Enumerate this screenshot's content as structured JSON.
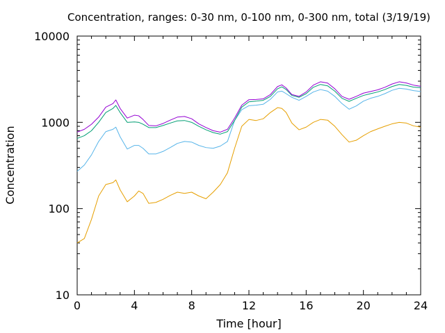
{
  "chart_data": {
    "type": "line",
    "title": "Concentration, ranges: 0-30 nm, 0-100 nm, 0-300 nm, total (3/19/19)",
    "xlabel": "Time [hour]",
    "ylabel": "Concentration",
    "xlim": [
      0,
      24
    ],
    "ylim": [
      10,
      10000
    ],
    "yscale": "log",
    "grid": false,
    "legend": "none",
    "x_ticks": [
      0,
      4,
      8,
      12,
      16,
      20,
      24
    ],
    "x_tick_labels": [
      "0",
      "4",
      "8",
      "12",
      "16",
      "20",
      "24"
    ],
    "y_ticks": [
      10,
      100,
      1000,
      10000
    ],
    "y_tick_labels": [
      "10",
      "100",
      "1000",
      "10000"
    ],
    "series": [
      {
        "color": "#e69f00",
        "x": [
          0,
          0.5,
          1,
          1.5,
          2,
          2.5,
          2.7,
          3,
          3.5,
          4,
          4.3,
          4.6,
          5,
          5.5,
          6,
          6.5,
          7,
          7.5,
          8,
          8.5,
          9,
          9.5,
          10,
          10.5,
          11,
          11.5,
          12,
          12.5,
          13,
          13.5,
          14,
          14.3,
          14.6,
          15,
          15.5,
          16,
          16.5,
          17,
          17.5,
          18,
          18.5,
          19,
          19.5,
          20,
          20.5,
          21,
          21.5,
          22,
          22.5,
          23,
          23.5,
          24
        ],
        "y": [
          40,
          45,
          75,
          140,
          190,
          200,
          215,
          165,
          120,
          140,
          160,
          150,
          115,
          118,
          128,
          142,
          155,
          150,
          155,
          140,
          130,
          155,
          190,
          260,
          500,
          900,
          1080,
          1050,
          1100,
          1300,
          1480,
          1450,
          1300,
          980,
          820,
          880,
          1000,
          1080,
          1060,
          900,
          720,
          590,
          620,
          700,
          780,
          840,
          900,
          960,
          1000,
          980,
          910,
          880
        ]
      },
      {
        "color": "#56b4e9",
        "x": [
          0,
          0.5,
          1,
          1.5,
          2,
          2.5,
          2.7,
          3,
          3.5,
          4,
          4.3,
          4.6,
          5,
          5.5,
          6,
          6.5,
          7,
          7.5,
          8,
          8.5,
          9,
          9.5,
          10,
          10.5,
          11,
          11.5,
          12,
          12.5,
          13,
          13.5,
          14,
          14.3,
          14.6,
          15,
          15.5,
          16,
          16.5,
          17,
          17.5,
          18,
          18.5,
          19,
          19.5,
          20,
          20.5,
          21,
          21.5,
          22,
          22.5,
          23,
          23.5,
          24
        ],
        "y": [
          270,
          320,
          420,
          600,
          780,
          830,
          880,
          680,
          490,
          540,
          540,
          500,
          430,
          430,
          460,
          510,
          570,
          600,
          590,
          540,
          510,
          500,
          530,
          600,
          1050,
          1400,
          1560,
          1580,
          1620,
          1850,
          2250,
          2300,
          2150,
          1950,
          1800,
          2000,
          2250,
          2400,
          2300,
          2000,
          1650,
          1420,
          1550,
          1760,
          1900,
          2000,
          2150,
          2350,
          2480,
          2430,
          2330,
          2280
        ]
      },
      {
        "color": "#009e73",
        "x": [
          0,
          0.5,
          1,
          1.5,
          2,
          2.5,
          2.7,
          3,
          3.5,
          4,
          4.3,
          4.6,
          5,
          5.5,
          6,
          6.5,
          7,
          7.5,
          8,
          8.5,
          9,
          9.5,
          10,
          10.5,
          11,
          11.5,
          12,
          12.5,
          13,
          13.5,
          14,
          14.3,
          14.6,
          15,
          15.5,
          16,
          16.5,
          17,
          17.5,
          18,
          18.5,
          19,
          19.5,
          20,
          20.5,
          21,
          21.5,
          22,
          22.5,
          23,
          23.5,
          24
        ],
        "y": [
          650,
          700,
          800,
          1000,
          1300,
          1450,
          1570,
          1300,
          1000,
          1010,
          1000,
          950,
          870,
          870,
          920,
          980,
          1040,
          1050,
          1000,
          900,
          820,
          760,
          730,
          780,
          1050,
          1500,
          1730,
          1760,
          1800,
          2000,
          2450,
          2580,
          2400,
          2050,
          1950,
          2150,
          2550,
          2750,
          2650,
          2300,
          1900,
          1750,
          1900,
          2050,
          2150,
          2250,
          2400,
          2600,
          2750,
          2680,
          2560,
          2520
        ]
      },
      {
        "color": "#9400d3",
        "x": [
          0,
          0.5,
          1,
          1.5,
          2,
          2.5,
          2.7,
          3,
          3.5,
          4,
          4.3,
          4.6,
          5,
          5.5,
          6,
          6.5,
          7,
          7.5,
          8,
          8.5,
          9,
          9.5,
          10,
          10.5,
          11,
          11.5,
          12,
          12.5,
          13,
          13.5,
          14,
          14.3,
          14.6,
          15,
          15.5,
          16,
          16.5,
          17,
          17.5,
          18,
          18.5,
          19,
          19.5,
          20,
          20.5,
          21,
          21.5,
          22,
          22.5,
          23,
          23.5,
          24
        ],
        "y": [
          770,
          830,
          950,
          1150,
          1500,
          1650,
          1820,
          1450,
          1120,
          1210,
          1190,
          1080,
          920,
          910,
          970,
          1060,
          1150,
          1170,
          1100,
          960,
          870,
          800,
          770,
          830,
          1120,
          1580,
          1830,
          1840,
          1870,
          2100,
          2600,
          2720,
          2500,
          2100,
          2000,
          2250,
          2700,
          2950,
          2850,
          2450,
          2000,
          1850,
          2000,
          2180,
          2280,
          2380,
          2550,
          2780,
          2950,
          2860,
          2700,
          2620
        ]
      }
    ]
  }
}
